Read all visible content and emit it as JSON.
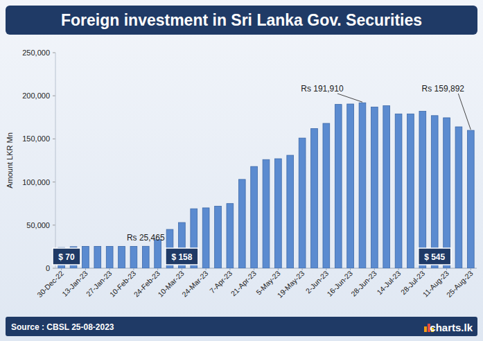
{
  "chart_data": {
    "type": "bar",
    "title": "Foreign investment in Sri Lanka Gov. Securities",
    "y_label": "Amount LKR Mn",
    "source": "Source : CBSL 25-08-2023",
    "logo": "charts.lk",
    "categories": [
      "30-Dec-22",
      null,
      "13-Jan-23",
      null,
      "27-Jan-23",
      null,
      "10-Feb-23",
      null,
      "24-Feb-23",
      null,
      "10-Mar-23",
      null,
      "24-Mar-23",
      null,
      "7-Apr-23",
      null,
      "21-Apr-23",
      null,
      "5-May-23",
      null,
      "19-May-23",
      null,
      "2-Jun-23",
      null,
      "16-Jun-23",
      null,
      "28-Jun-23",
      null,
      "14-Jul-23",
      null,
      "28-Jul-23",
      null,
      "11-Aug-23",
      null,
      "25-Aug-23"
    ],
    "values": [
      24000,
      25000,
      25400,
      25400,
      25400,
      25400,
      25400,
      25465,
      33000,
      45000,
      53000,
      69000,
      70000,
      72000,
      75000,
      103000,
      118000,
      126000,
      127000,
      131000,
      151000,
      162000,
      168000,
      190000,
      190500,
      191910,
      187000,
      188500,
      179000,
      179000,
      182000,
      177000,
      174500,
      164000,
      159892
    ],
    "color": "#5b8bd0",
    "ylim": [
      0,
      250000
    ],
    "yticks": [
      0,
      {
        "value": 50000,
        "label": "50,000"
      },
      {
        "value": 100000,
        "label": "100,000"
      },
      {
        "value": 150000,
        "label": "150,000"
      },
      {
        "value": 200000,
        "label": "200,000"
      },
      {
        "value": 250000,
        "label": "250,000"
      }
    ],
    "grid": false,
    "annotations": [
      {
        "text": "Rs 25,465",
        "index": 7
      },
      {
        "text": "Rs 191,910",
        "index": 25
      },
      {
        "text": "Rs 159,892",
        "index": 34
      },
      {
        "text": "$ 70",
        "index": 0
      },
      {
        "text": "$ 158",
        "index": 10
      },
      {
        "text": "$ 545",
        "index": 31
      }
    ]
  }
}
